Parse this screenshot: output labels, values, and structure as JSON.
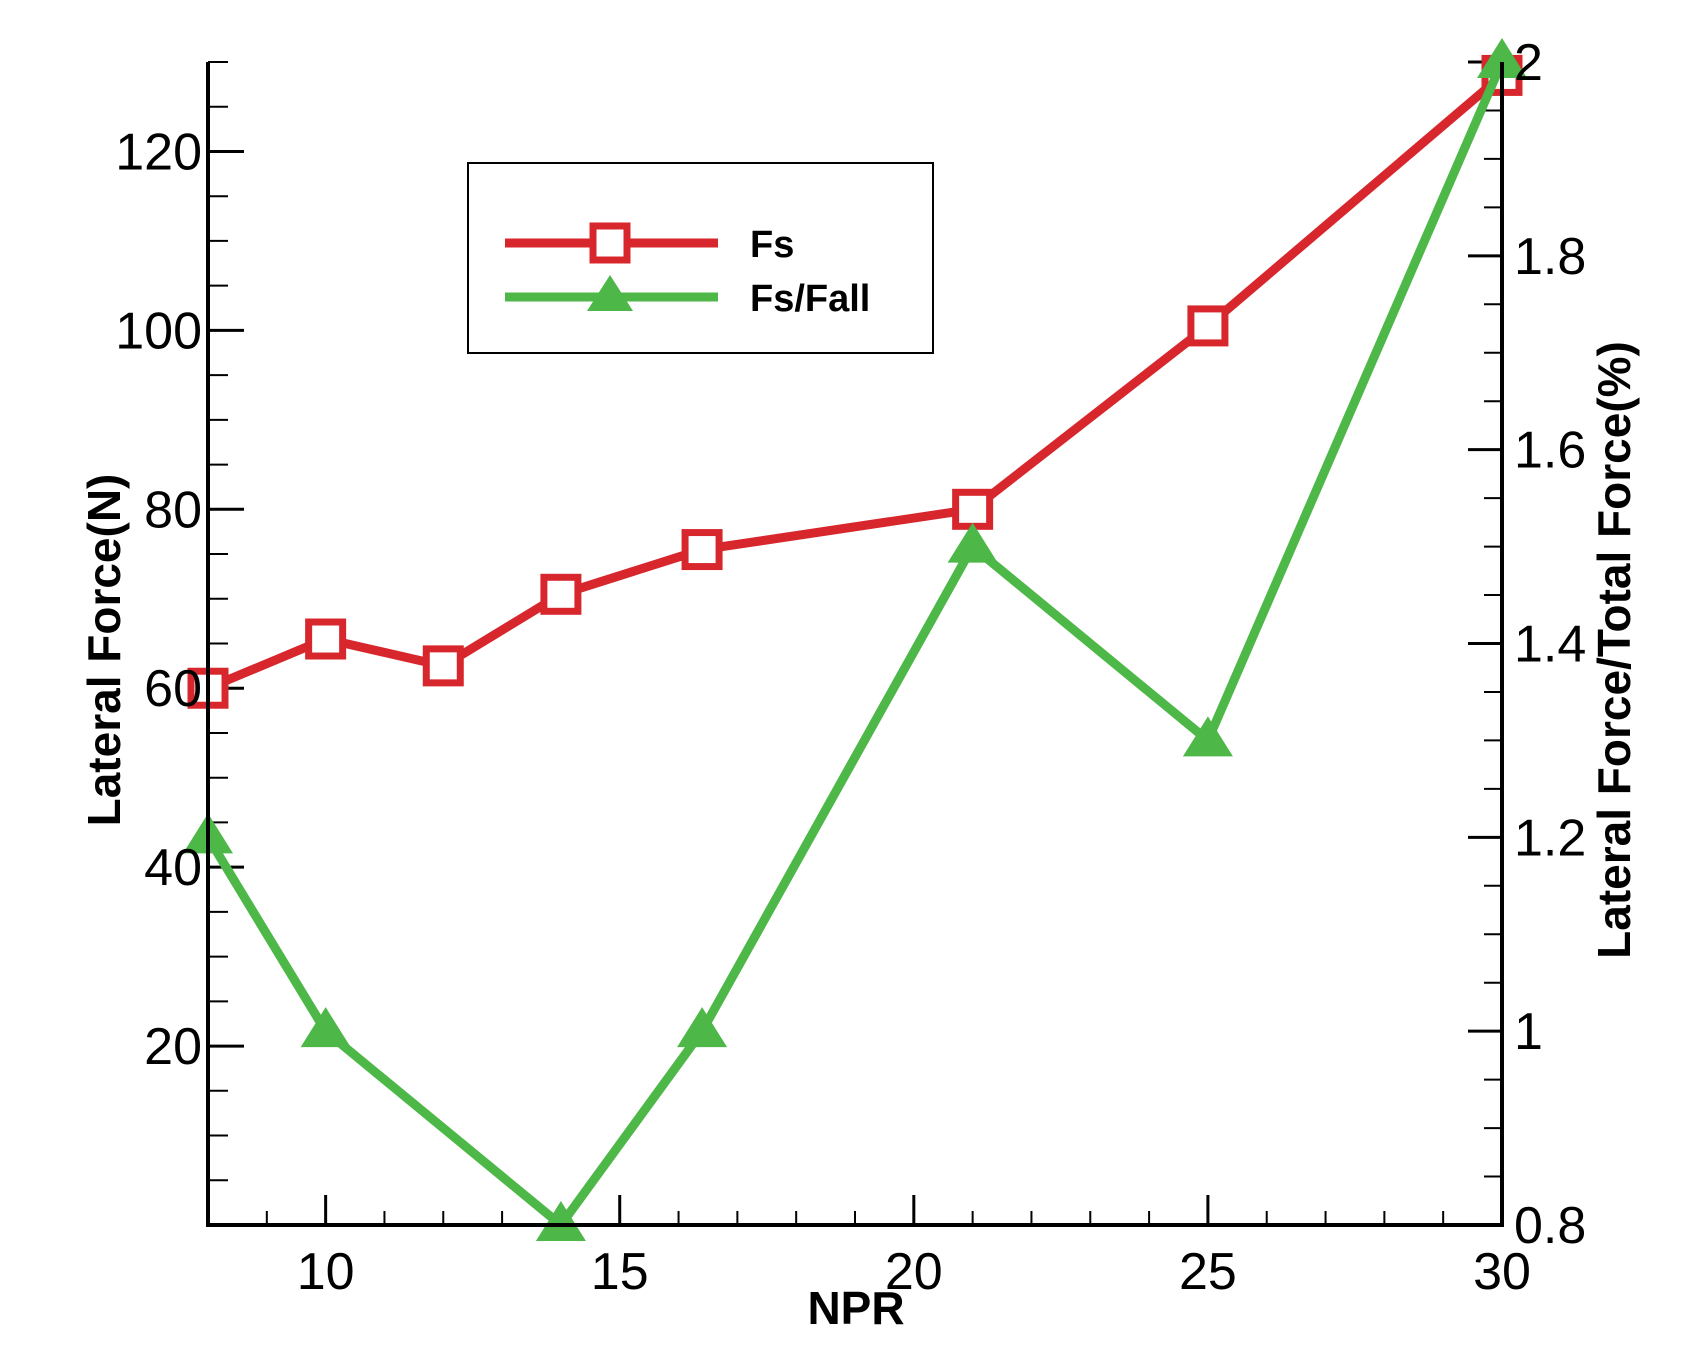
{
  "chart_data": {
    "type": "line",
    "xlabel": "NPR",
    "ylabel": "Lateral Force(N)",
    "y2label": "Lateral Force/Total Force(%)",
    "xlim": [
      8,
      30
    ],
    "ylim": [
      0,
      130
    ],
    "y2lim": [
      0.8,
      2.0
    ],
    "x_ticks": [
      10,
      15,
      20,
      25,
      30
    ],
    "y_ticks": [
      20,
      40,
      60,
      80,
      100,
      120
    ],
    "y2_ticks": [
      0.8,
      1,
      1.2,
      1.4,
      1.6,
      1.8,
      2
    ],
    "y2_tick_labels": [
      "0.8",
      "1",
      "1.2",
      "1.4",
      "1.6",
      "1.8",
      "2"
    ],
    "legend_position": "top-left",
    "grid": false,
    "series": [
      {
        "name": "Fs",
        "axis": "left",
        "color": "#d7272d",
        "marker": "square",
        "x": [
          8,
          10,
          12,
          14,
          16.4,
          21,
          25,
          30
        ],
        "values": [
          60,
          65.5,
          62.5,
          70.5,
          75.5,
          80,
          100.5,
          128.5
        ]
      },
      {
        "name": "Fs/Fall",
        "axis": "right",
        "color": "#4db848",
        "marker": "triangle",
        "x": [
          8,
          10,
          14,
          16.4,
          21,
          25,
          30
        ],
        "values": [
          1.2,
          1.0,
          0.8,
          1.0,
          1.5,
          1.3,
          2.0
        ]
      }
    ]
  }
}
